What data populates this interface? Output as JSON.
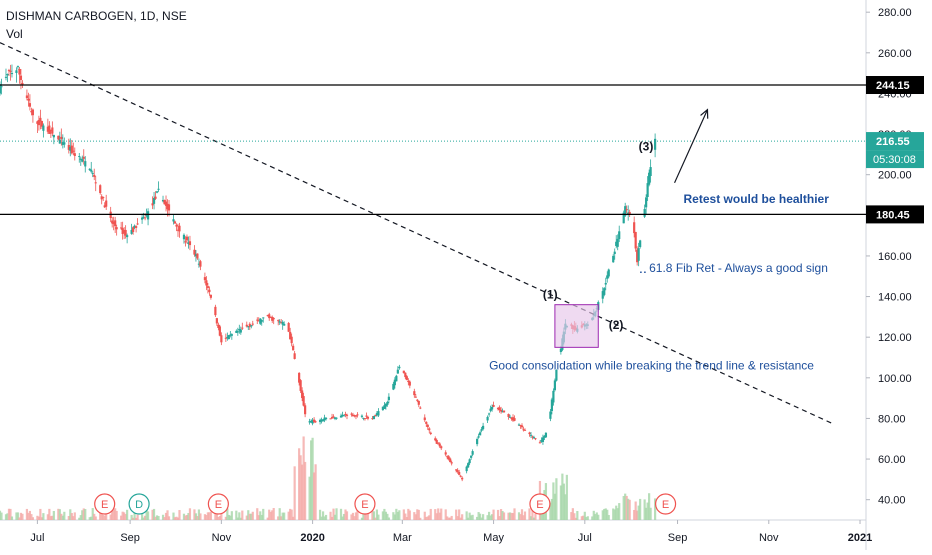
{
  "header": {
    "symbol": "DISHMAN CARBOGEN, 1D, NSE",
    "volume_label": "Vol"
  },
  "colors": {
    "up": "#26a69a",
    "down": "#ef5350",
    "level": "#000000",
    "current": "#26a69a",
    "annotation": "#1e4f9c",
    "box_fill": "#e7c6ea",
    "box_stroke": "#9c27b0"
  },
  "chart_data": {
    "type": "candlestick",
    "y_axis": {
      "range": [
        30,
        286
      ],
      "ticks": [
        "280.00",
        "260.00",
        "240.00",
        "220.00",
        "200.00",
        "180.00",
        "160.00",
        "140.00",
        "120.00",
        "100.00",
        "80.00",
        "60.00",
        "40.00"
      ],
      "position": "right"
    },
    "x_axis": {
      "range": [
        "2019-06-06",
        "2021-01-05"
      ],
      "ticks": [
        {
          "label": "Jul",
          "date": "2019-07-01"
        },
        {
          "label": "Sep",
          "date": "2019-09-01"
        },
        {
          "label": "Nov",
          "date": "2019-11-01"
        },
        {
          "label": "2020",
          "date": "2020-01-01"
        },
        {
          "label": "Mar",
          "date": "2020-03-01"
        },
        {
          "label": "May",
          "date": "2020-05-01"
        },
        {
          "label": "Jul",
          "date": "2020-07-01"
        },
        {
          "label": "Sep",
          "date": "2020-09-01"
        },
        {
          "label": "Nov",
          "date": "2020-11-01"
        },
        {
          "label": "2021",
          "date": "2021-01-01"
        }
      ]
    },
    "price_path": [
      {
        "date": "2019-06-06",
        "close": 243
      },
      {
        "date": "2019-06-12",
        "close": 250
      },
      {
        "date": "2019-06-18",
        "close": 252
      },
      {
        "date": "2019-06-28",
        "close": 228
      },
      {
        "date": "2019-07-08",
        "close": 222
      },
      {
        "date": "2019-07-20",
        "close": 214
      },
      {
        "date": "2019-08-05",
        "close": 204
      },
      {
        "date": "2019-08-20",
        "close": 176
      },
      {
        "date": "2019-08-30",
        "close": 170
      },
      {
        "date": "2019-09-12",
        "close": 180
      },
      {
        "date": "2019-09-20",
        "close": 192
      },
      {
        "date": "2019-10-01",
        "close": 176
      },
      {
        "date": "2019-10-15",
        "close": 160
      },
      {
        "date": "2019-10-25",
        "close": 140
      },
      {
        "date": "2019-11-01",
        "close": 118
      },
      {
        "date": "2019-11-15",
        "close": 124
      },
      {
        "date": "2019-12-01",
        "close": 130
      },
      {
        "date": "2019-12-15",
        "close": 126
      },
      {
        "date": "2019-12-20",
        "close": 110
      },
      {
        "date": "2019-12-28",
        "close": 78
      },
      {
        "date": "2020-01-10",
        "close": 80
      },
      {
        "date": "2020-01-25",
        "close": 82
      },
      {
        "date": "2020-02-10",
        "close": 80
      },
      {
        "date": "2020-02-20",
        "close": 88
      },
      {
        "date": "2020-02-28",
        "close": 106
      },
      {
        "date": "2020-03-10",
        "close": 90
      },
      {
        "date": "2020-03-20",
        "close": 72
      },
      {
        "date": "2020-04-01",
        "close": 60
      },
      {
        "date": "2020-04-10",
        "close": 50
      },
      {
        "date": "2020-04-20",
        "close": 70
      },
      {
        "date": "2020-04-30",
        "close": 86
      },
      {
        "date": "2020-05-10",
        "close": 82
      },
      {
        "date": "2020-05-22",
        "close": 74
      },
      {
        "date": "2020-06-01",
        "close": 68
      },
      {
        "date": "2020-06-06",
        "close": 74
      },
      {
        "date": "2020-06-12",
        "close": 104
      },
      {
        "date": "2020-06-18",
        "close": 126
      },
      {
        "date": "2020-06-25",
        "close": 124
      },
      {
        "date": "2020-07-05",
        "close": 128
      },
      {
        "date": "2020-07-12",
        "close": 140
      },
      {
        "date": "2020-07-20",
        "close": 160
      },
      {
        "date": "2020-07-28",
        "close": 184
      },
      {
        "date": "2020-08-02",
        "close": 176
      },
      {
        "date": "2020-08-05",
        "close": 158
      },
      {
        "date": "2020-08-09",
        "close": 178
      },
      {
        "date": "2020-08-13",
        "close": 200
      },
      {
        "date": "2020-08-17",
        "close": 216.55
      }
    ],
    "levels": [
      {
        "value": 244.15,
        "label": "244.15",
        "style": "solid"
      },
      {
        "value": 180.45,
        "label": "180.45",
        "style": "solid"
      },
      {
        "value": 216.55,
        "label": "216.55",
        "style": "dotted",
        "current": true,
        "timer": "05:30:08"
      }
    ],
    "trendline": {
      "start": {
        "date": "2019-06-06",
        "value": 265
      },
      "end": {
        "date": "2020-12-15",
        "value": 77
      }
    },
    "consolidation_box": {
      "date_from": "2020-06-11",
      "date_to": "2020-07-10",
      "value_from": 115,
      "value_to": 136
    },
    "waves": [
      {
        "label": "(1)",
        "date": "2020-06-03",
        "value": 139
      },
      {
        "label": "(2)",
        "date": "2020-07-17",
        "value": 124
      },
      {
        "label": "(3)",
        "date": "2020-08-06",
        "value": 212
      }
    ],
    "annotations": [
      {
        "text": "Retest would be healthier",
        "date": "2020-09-05",
        "value": 186,
        "bold": true
      },
      {
        "text": "61.8 Fib Ret - Always a good sign",
        "date": "2020-08-13",
        "value": 152
      },
      {
        "text": "Good consolidation while breaking the trend line & resistance",
        "date": "2020-04-28",
        "value": 104
      }
    ],
    "fib_marker": {
      "date_from": "2020-08-07",
      "date_to": "2020-08-11",
      "value": 152
    },
    "arrow": {
      "from": {
        "date": "2020-08-30",
        "value": 196
      },
      "to": {
        "date": "2020-09-21",
        "value": 232
      }
    },
    "event_markers": [
      {
        "letter": "E",
        "date": "2019-08-15"
      },
      {
        "letter": "D",
        "date": "2019-09-07"
      },
      {
        "letter": "E",
        "date": "2019-10-30"
      },
      {
        "letter": "E",
        "date": "2020-02-05"
      },
      {
        "letter": "E",
        "date": "2020-06-01"
      },
      {
        "letter": "E",
        "date": "2020-08-24"
      }
    ]
  }
}
